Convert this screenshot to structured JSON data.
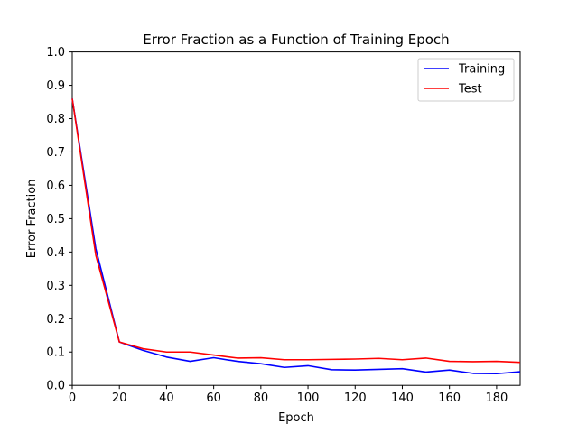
{
  "chart_data": {
    "type": "line",
    "title": "Error Fraction as a Function of Training Epoch",
    "xlabel": "Epoch",
    "ylabel": "Error Fraction",
    "xlim": [
      0,
      190
    ],
    "ylim": [
      0,
      1.0
    ],
    "x_ticks": [
      "0",
      "20",
      "40",
      "60",
      "80",
      "100",
      "120",
      "140",
      "160",
      "180"
    ],
    "y_ticks": [
      "0.0",
      "0.1",
      "0.2",
      "0.3",
      "0.4",
      "0.5",
      "0.6",
      "0.7",
      "0.8",
      "0.9",
      "1.0"
    ],
    "grid": false,
    "legend_position": "top-right",
    "x": [
      0,
      10,
      20,
      30,
      40,
      50,
      60,
      70,
      80,
      90,
      100,
      110,
      120,
      130,
      140,
      150,
      160,
      170,
      180,
      190
    ],
    "series": [
      {
        "name": "Training",
        "color": "#0000ff",
        "values": [
          0.86,
          0.41,
          0.13,
          0.105,
          0.085,
          0.072,
          0.083,
          0.072,
          0.065,
          0.054,
          0.059,
          0.047,
          0.046,
          0.048,
          0.05,
          0.04,
          0.046,
          0.036,
          0.035,
          0.041
        ]
      },
      {
        "name": "Test",
        "color": "#ff0000",
        "values": [
          0.86,
          0.39,
          0.13,
          0.11,
          0.1,
          0.1,
          0.091,
          0.082,
          0.083,
          0.077,
          0.077,
          0.078,
          0.079,
          0.081,
          0.077,
          0.082,
          0.072,
          0.071,
          0.072,
          0.069
        ]
      }
    ]
  }
}
